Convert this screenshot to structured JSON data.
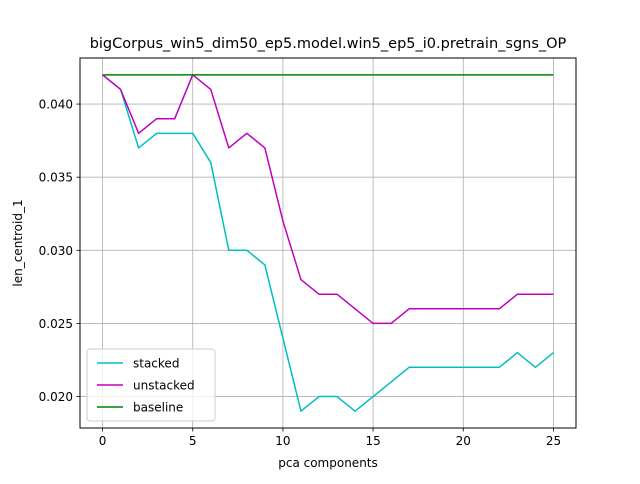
{
  "chart_data": {
    "type": "line",
    "title": "bigCorpus_win5_dim50_ep5.model.win5_ep5_i0.pretrain_sgns_OP",
    "xlabel": "pca components",
    "ylabel": "len_centroid_1",
    "xlim": [
      -1.25,
      26.25
    ],
    "ylim": [
      0.01785,
      0.04315
    ],
    "xticks": [
      0,
      5,
      10,
      15,
      20,
      25
    ],
    "xtick_labels": [
      "0",
      "5",
      "10",
      "15",
      "20",
      "25"
    ],
    "yticks": [
      0.02,
      0.025,
      0.03,
      0.035,
      0.04
    ],
    "ytick_labels": [
      "0.020",
      "0.025",
      "0.030",
      "0.035",
      "0.040"
    ],
    "grid": true,
    "legend_position": "lower-left",
    "x": [
      0,
      1,
      2,
      3,
      4,
      5,
      6,
      7,
      8,
      9,
      10,
      11,
      12,
      13,
      14,
      15,
      16,
      17,
      18,
      19,
      20,
      21,
      22,
      23,
      24,
      25
    ],
    "series": [
      {
        "name": "stacked",
        "color": "#00bfbf",
        "values": [
          0.042,
          0.041,
          0.037,
          0.038,
          0.038,
          0.038,
          0.036,
          0.03,
          0.03,
          0.029,
          0.024,
          0.019,
          0.02,
          0.02,
          0.019,
          0.02,
          0.021,
          0.022,
          0.022,
          0.022,
          0.022,
          0.022,
          0.022,
          0.023,
          0.022,
          0.023
        ]
      },
      {
        "name": "unstacked",
        "color": "#bf00bf",
        "values": [
          0.042,
          0.041,
          0.038,
          0.039,
          0.039,
          0.042,
          0.041,
          0.037,
          0.038,
          0.037,
          0.032,
          0.028,
          0.027,
          0.027,
          0.026,
          0.025,
          0.025,
          0.026,
          0.026,
          0.026,
          0.026,
          0.026,
          0.026,
          0.027,
          0.027,
          0.027
        ]
      },
      {
        "name": "baseline",
        "color": "#008000",
        "values": [
          0.042,
          0.042,
          0.042,
          0.042,
          0.042,
          0.042,
          0.042,
          0.042,
          0.042,
          0.042,
          0.042,
          0.042,
          0.042,
          0.042,
          0.042,
          0.042,
          0.042,
          0.042,
          0.042,
          0.042,
          0.042,
          0.042,
          0.042,
          0.042,
          0.042,
          0.042
        ]
      }
    ]
  }
}
